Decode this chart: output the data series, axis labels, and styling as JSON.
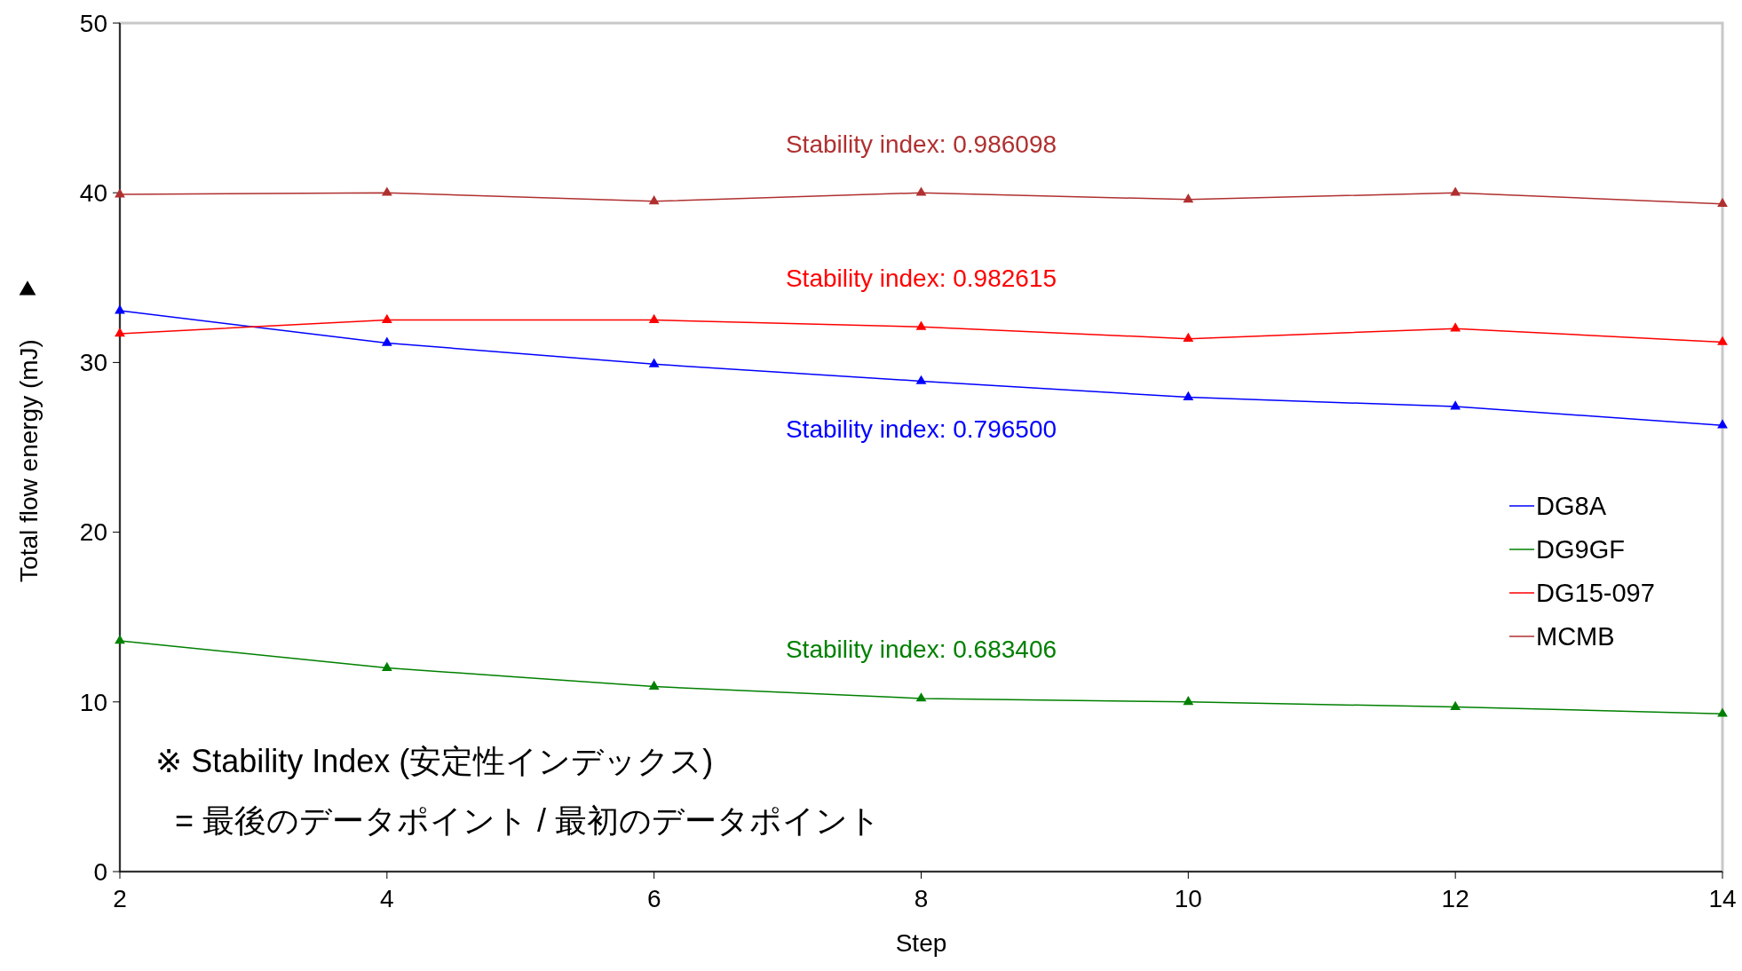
{
  "chart_data": {
    "type": "line",
    "xlabel": "Step",
    "ylabel": "Total flow energy  (mJ)",
    "x": [
      2,
      4,
      6,
      8,
      10,
      12,
      14
    ],
    "series": [
      {
        "name": "DG8A",
        "color": "#0000ff",
        "values": [
          33.05,
          31.15,
          29.9,
          28.9,
          27.95,
          27.4,
          26.3
        ]
      },
      {
        "name": "DG9GF",
        "color": "#008000",
        "values": [
          13.6,
          12.0,
          10.9,
          10.2,
          10.0,
          9.7,
          9.3
        ]
      },
      {
        "name": "DG15-097",
        "color": "#ff0000",
        "values": [
          31.7,
          32.5,
          32.5,
          32.1,
          31.4,
          32.0,
          31.2
        ]
      },
      {
        "name": "MCMB",
        "color": "#b03030",
        "values": [
          39.9,
          40.0,
          39.5,
          40.0,
          39.6,
          40.0,
          39.35
        ]
      }
    ],
    "xlim": [
      2,
      14
    ],
    "xticks": [
      2,
      4,
      6,
      8,
      10,
      12,
      14
    ],
    "ylim": [
      0,
      50
    ],
    "yticks": [
      0,
      10,
      20,
      30,
      40,
      50
    ],
    "marker": "triangle",
    "legend": "right",
    "grid": false,
    "annotations": [
      "Stability index: 0.986098",
      "Stability index: 0.982615",
      "Stability index: 0.796500",
      "Stability index: 0.683406",
      "※ Stability Index (安定性インデックス)",
      "= 最後のデータポイント / 最初のデータポイント"
    ]
  }
}
